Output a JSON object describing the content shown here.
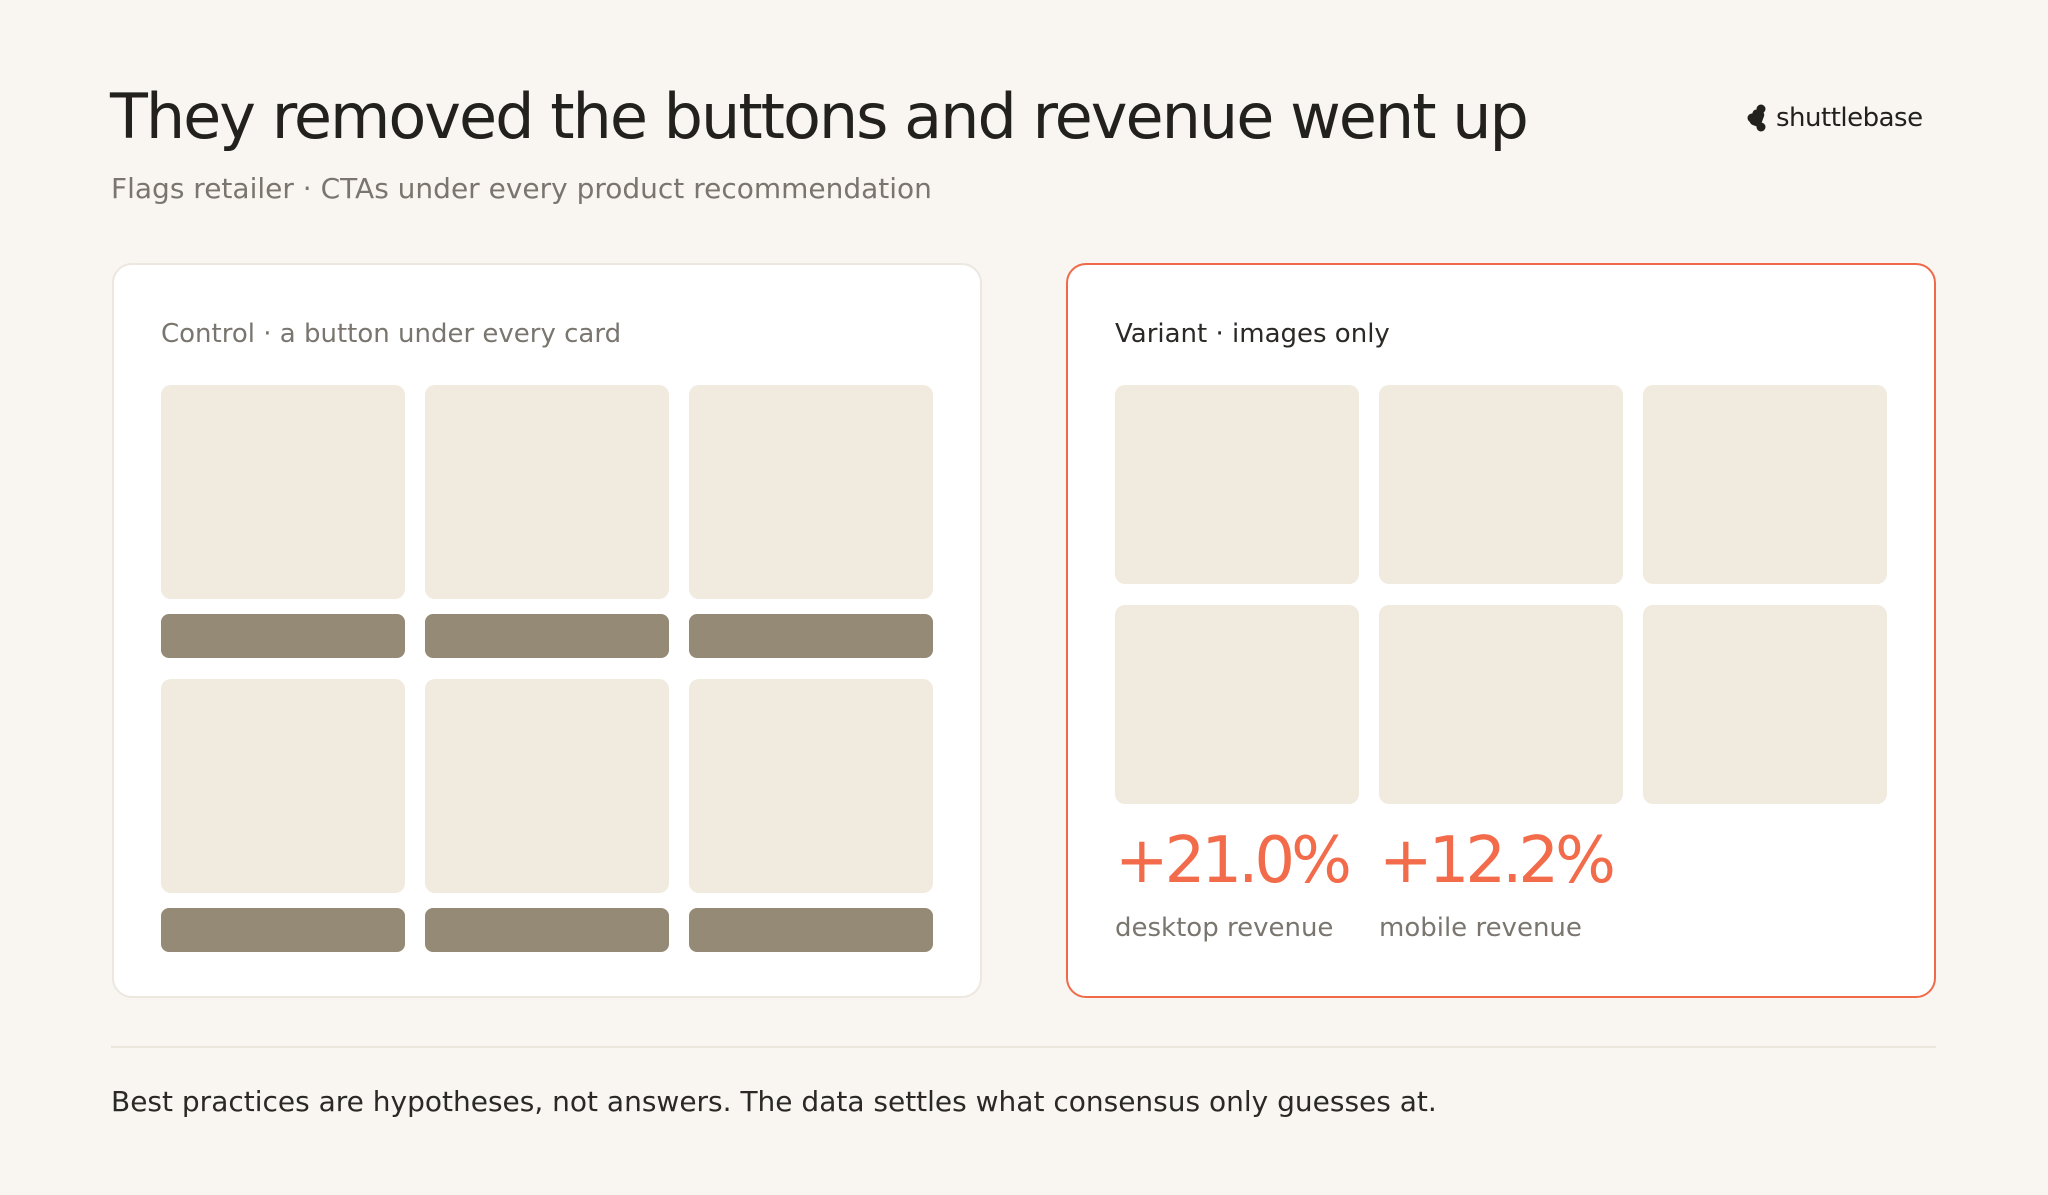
{
  "header": {
    "title": "They removed the buttons and revenue went up",
    "subtitle": "Flags retailer · CTAs under every product recommendation"
  },
  "brand": "shuttlebase",
  "control": {
    "label": "Control · a button under every card"
  },
  "variant": {
    "label": "Variant · images only",
    "metrics": [
      {
        "value": "+21.0%",
        "label": "desktop revenue"
      },
      {
        "value": "+12.2%",
        "label": "mobile revenue"
      }
    ]
  },
  "footer": "Best practices are hypotheses, not answers. The data settles what consensus only guesses at."
}
